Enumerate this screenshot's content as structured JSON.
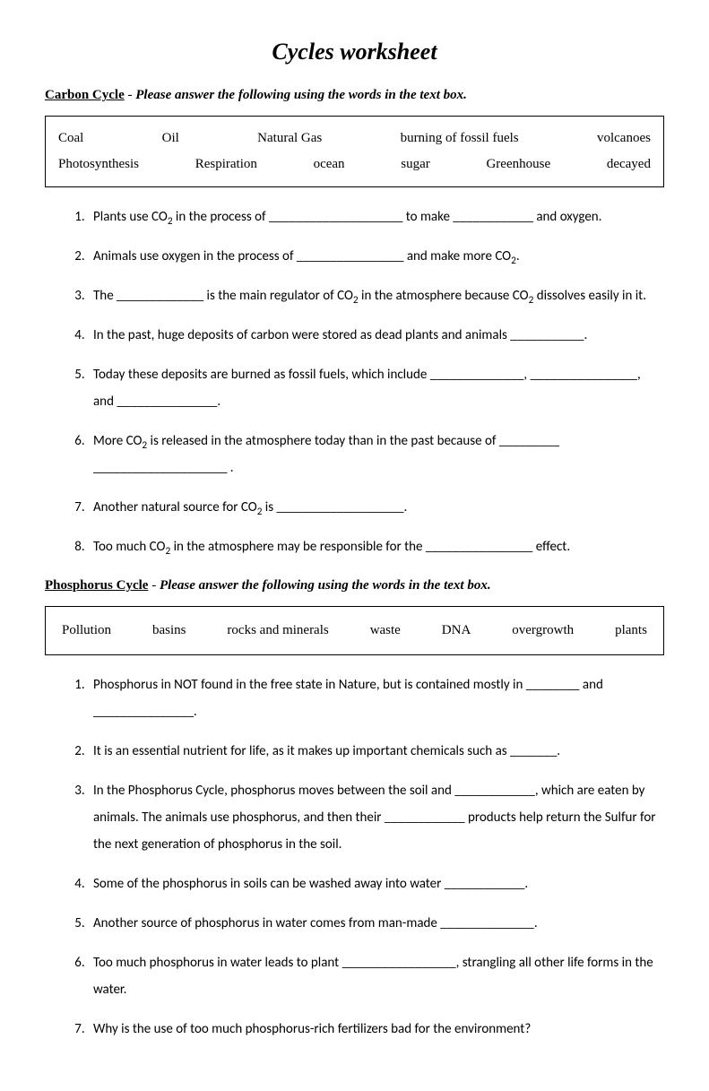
{
  "title": "Cycles worksheet",
  "carbon": {
    "heading": "Carbon Cycle",
    "instruction": "Please answer the following using the words in the text box.",
    "wordbox": {
      "row1": [
        "Coal",
        "Oil",
        "Natural Gas",
        "burning of fossil fuels",
        "volcanoes"
      ],
      "row2": [
        "Photosynthesis",
        "Respiration",
        "ocean",
        "sugar",
        "Greenhouse",
        "decayed"
      ]
    },
    "questions": [
      "Plants use CO<sub>2</sub> in the process of ____________________ to make ____________ and oxygen.",
      "Animals use oxygen in the process of ________________ and make more CO<sub>2</sub>.",
      "The _____________ is the main regulator of CO<sub>2</sub> in the atmosphere because CO<sub>2</sub> dissolves easily in it.",
      "In the past, huge deposits of carbon were stored as dead plants and animals ___________.",
      "Today these deposits are burned as fossil fuels, which include ______________, ________________, and _______________.",
      "More CO<sub>2</sub> is released in the atmosphere today than in the past because of _________ ____________________ .",
      "Another natural source for CO<sub>2</sub> is ___________________.",
      "Too much CO<sub>2</sub> in the atmosphere may be responsible for the ________________ effect."
    ]
  },
  "phosphorus": {
    "heading": "Phosphorus Cycle",
    "instruction": "Please answer the following using the words in the text box.",
    "wordbox": {
      "row1": [
        "Pollution",
        "basins",
        "rocks and minerals",
        "waste",
        "DNA",
        "overgrowth",
        "plants"
      ]
    },
    "questions": [
      "Phosphorus in NOT found in the free state in Nature, but is contained mostly in ________ and _______________.",
      "It is an essential nutrient for life, as it makes up important chemicals such as _______.",
      "In the Phosphorus Cycle, phosphorus moves between the soil and ____________, which are eaten by animals.  The animals use phosphorus, and then their ____________ products help return the Sulfur for the next generation of phosphorus in the soil.",
      "Some of the phosphorus in soils can be washed away into water ____________.",
      "Another source of phosphorus in water comes from man-made ______________.",
      "Too much phosphorus in water leads to plant _________________, strangling all other life forms in the water.",
      "Why is the use of too much phosphorus-rich fertilizers bad for the environment?"
    ]
  }
}
